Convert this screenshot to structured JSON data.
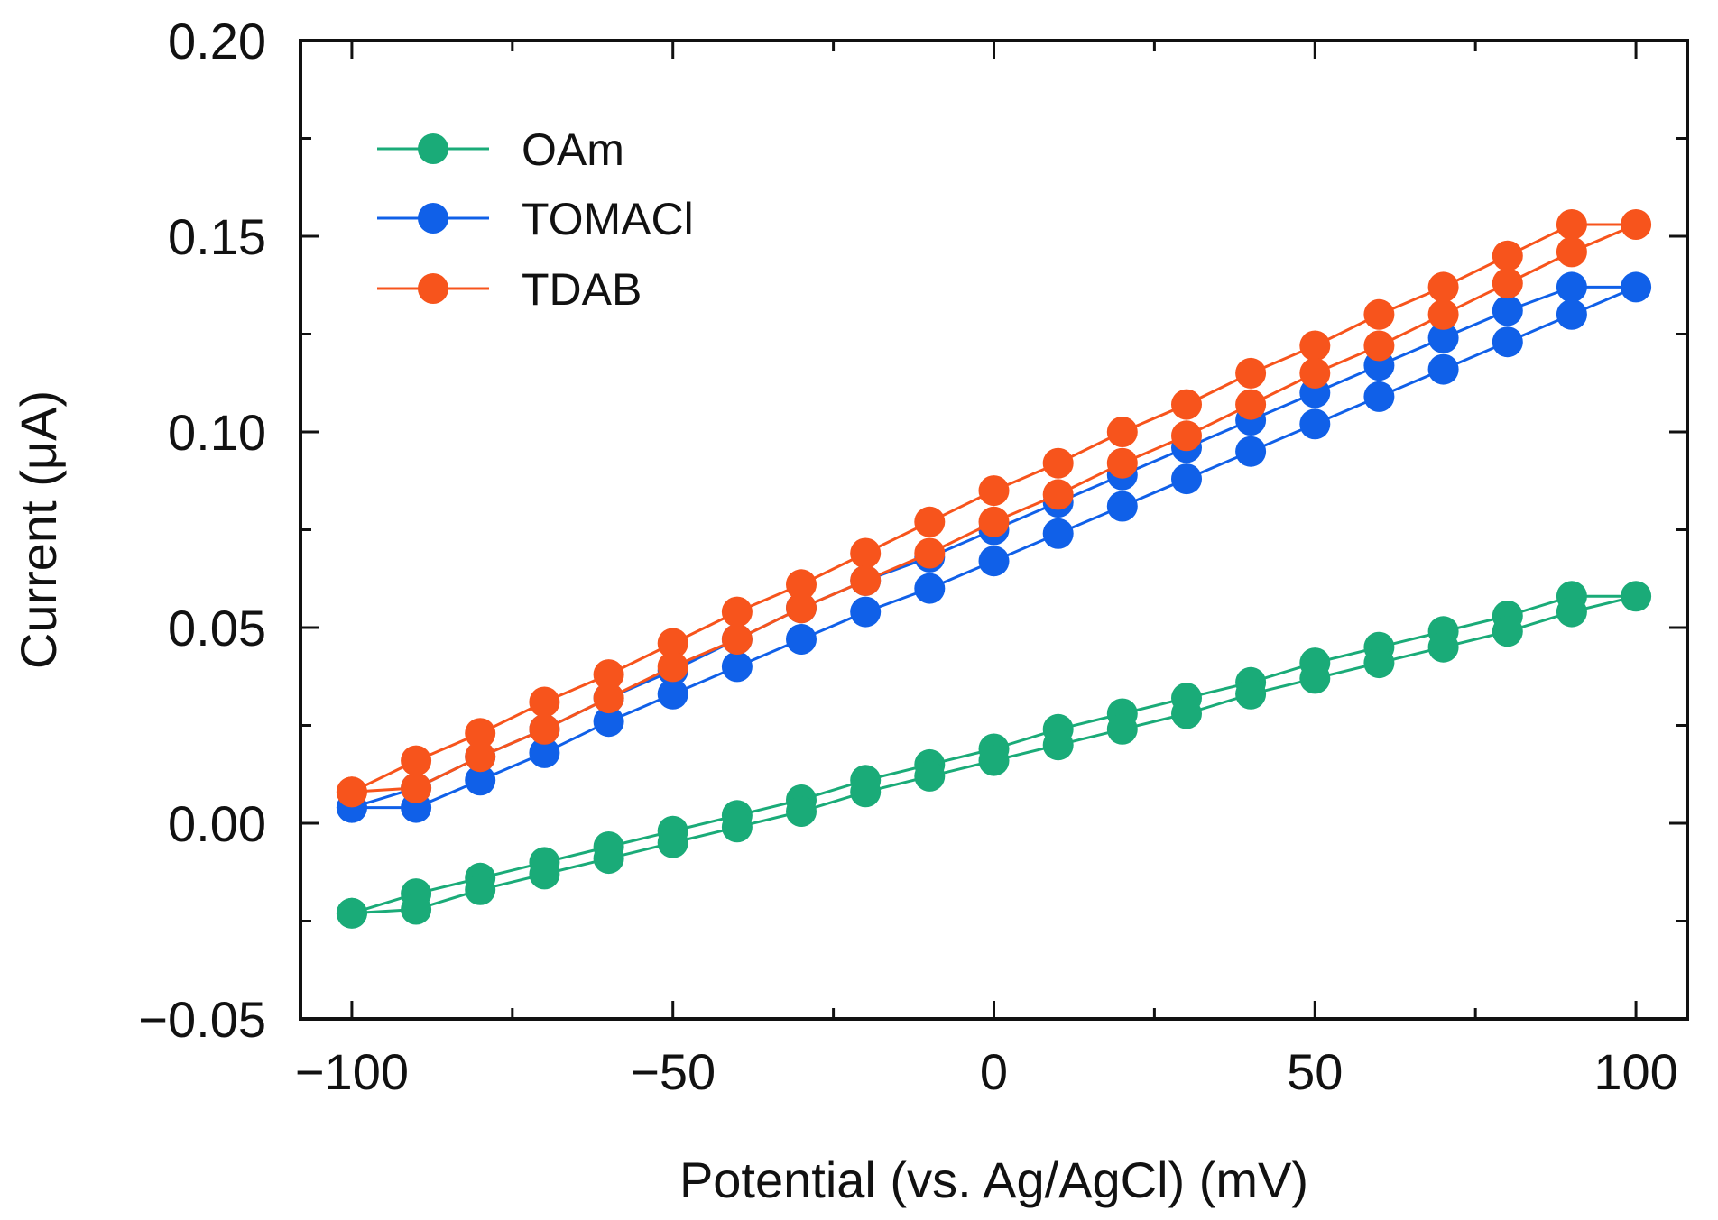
{
  "chart_data": {
    "type": "line",
    "title": "",
    "xlabel": "Potential (vs. Ag/AgCl) (mV)",
    "ylabel": "Current (μA)",
    "xlim": [
      -108,
      108
    ],
    "ylim": [
      -0.05,
      0.2
    ],
    "x_ticks": [
      -100,
      -50,
      0,
      50,
      100
    ],
    "x_tick_labels": [
      "−100",
      "−50",
      "0",
      "50",
      "100"
    ],
    "y_ticks": [
      -0.05,
      0.0,
      0.05,
      0.1,
      0.15,
      0.2
    ],
    "y_tick_labels": [
      "−0.05",
      "0.00",
      "0.05",
      "0.10",
      "0.15",
      "0.20"
    ],
    "grid": false,
    "legend_position": "top-left",
    "series": [
      {
        "name": "OAm",
        "color": "#1aab78",
        "x": [
          -100,
          -90,
          -80,
          -70,
          -60,
          -50,
          -40,
          -30,
          -20,
          -10,
          0,
          10,
          20,
          30,
          40,
          50,
          60,
          70,
          80,
          90,
          100,
          90,
          80,
          70,
          60,
          50,
          40,
          30,
          20,
          10,
          0,
          -10,
          -20,
          -30,
          -40,
          -50,
          -60,
          -70,
          -80,
          -90,
          -100
        ],
        "y": [
          -0.023,
          -0.018,
          -0.014,
          -0.01,
          -0.006,
          -0.002,
          0.002,
          0.006,
          0.011,
          0.015,
          0.019,
          0.024,
          0.028,
          0.032,
          0.036,
          0.041,
          0.045,
          0.049,
          0.053,
          0.058,
          0.058,
          0.054,
          0.049,
          0.045,
          0.041,
          0.037,
          0.033,
          0.028,
          0.024,
          0.02,
          0.016,
          0.012,
          0.008,
          0.003,
          -0.001,
          -0.005,
          -0.009,
          -0.013,
          -0.017,
          -0.022,
          -0.023
        ]
      },
      {
        "name": "TOMACl",
        "color": "#1060e8",
        "x": [
          -100,
          -90,
          -80,
          -70,
          -60,
          -50,
          -40,
          -30,
          -20,
          -10,
          0,
          10,
          20,
          30,
          40,
          50,
          60,
          70,
          80,
          90,
          100,
          90,
          80,
          70,
          60,
          50,
          40,
          30,
          20,
          10,
          0,
          -10,
          -20,
          -30,
          -40,
          -50,
          -60,
          -70,
          -80,
          -90,
          -100
        ],
        "y": [
          0.004,
          0.009,
          0.017,
          0.024,
          0.032,
          0.039,
          0.047,
          0.055,
          0.062,
          0.068,
          0.075,
          0.082,
          0.089,
          0.096,
          0.103,
          0.11,
          0.117,
          0.124,
          0.131,
          0.137,
          0.137,
          0.13,
          0.123,
          0.116,
          0.109,
          0.102,
          0.095,
          0.088,
          0.081,
          0.074,
          0.067,
          0.06,
          0.054,
          0.047,
          0.04,
          0.033,
          0.026,
          0.018,
          0.011,
          0.004,
          0.004
        ]
      },
      {
        "name": "TDAB",
        "color": "#f7541c",
        "x": [
          -100,
          -90,
          -80,
          -70,
          -60,
          -50,
          -40,
          -30,
          -20,
          -10,
          0,
          10,
          20,
          30,
          40,
          50,
          60,
          70,
          80,
          90,
          100,
          90,
          80,
          70,
          60,
          50,
          40,
          30,
          20,
          10,
          0,
          -10,
          -20,
          -30,
          -40,
          -50,
          -60,
          -70,
          -80,
          -90,
          -100
        ],
        "y": [
          0.008,
          0.016,
          0.023,
          0.031,
          0.038,
          0.046,
          0.054,
          0.061,
          0.069,
          0.077,
          0.085,
          0.092,
          0.1,
          0.107,
          0.115,
          0.122,
          0.13,
          0.137,
          0.145,
          0.153,
          0.153,
          0.146,
          0.138,
          0.13,
          0.122,
          0.115,
          0.107,
          0.099,
          0.092,
          0.084,
          0.077,
          0.069,
          0.062,
          0.055,
          0.047,
          0.04,
          0.032,
          0.024,
          0.017,
          0.009,
          0.008
        ]
      }
    ]
  }
}
